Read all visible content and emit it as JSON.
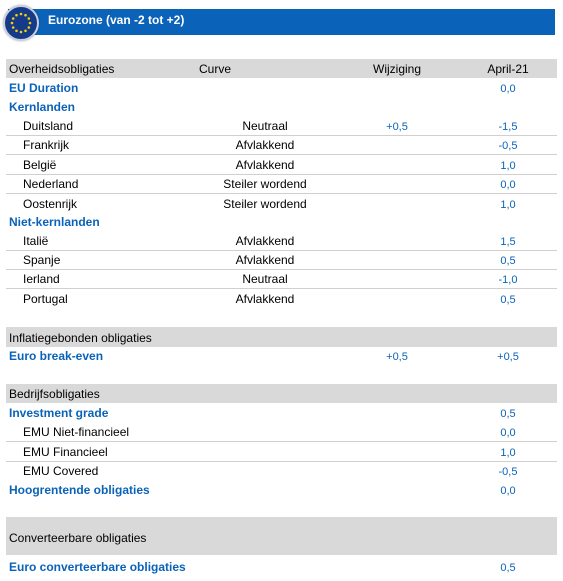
{
  "header": {
    "title": "Eurozone (van -2 tot +2)",
    "flag_icon": "eu-flag-icon"
  },
  "columns": {
    "c1": "Overheidsobligaties",
    "c2": "Curve",
    "c3": "Wijziging",
    "c4": "April-21"
  },
  "gov": {
    "eu_duration": {
      "label": "EU Duration",
      "value": "0,0"
    },
    "core_title": "Kernlanden",
    "core": [
      {
        "name": "Duitsland",
        "curve": "Neutraal",
        "change": "+0,5",
        "value": "-1,5"
      },
      {
        "name": "Frankrijk",
        "curve": "Afvlakkend",
        "change": "",
        "value": "-0,5"
      },
      {
        "name": "België",
        "curve": "Afvlakkend",
        "change": "",
        "value": "1,0"
      },
      {
        "name": "Nederland",
        "curve": "Steiler wordend",
        "change": "",
        "value": "0,0"
      },
      {
        "name": "Oostenrijk",
        "curve": "Steiler wordend",
        "change": "",
        "value": "1,0"
      }
    ],
    "noncore_title": "Niet-kernlanden",
    "noncore": [
      {
        "name": "Italië",
        "curve": "Afvlakkend",
        "change": "",
        "value": "1,5"
      },
      {
        "name": "Spanje",
        "curve": "Afvlakkend",
        "change": "",
        "value": "0,5"
      },
      {
        "name": "Ierland",
        "curve": "Neutraal",
        "change": "",
        "value": "-1,0"
      },
      {
        "name": "Portugal",
        "curve": "Afvlakkend",
        "change": "",
        "value": "0,5"
      }
    ]
  },
  "inflation": {
    "title": "Inflatiegebonden obligaties",
    "row": {
      "label": "Euro break-even",
      "change": "+0,5",
      "value": "+0,5"
    }
  },
  "corporate": {
    "title": "Bedrijfsobligaties",
    "ig": {
      "label": "Investment grade",
      "value": "0,5"
    },
    "items": [
      {
        "name": "EMU Niet-financieel",
        "value": "0,0"
      },
      {
        "name": "EMU Financieel",
        "value": "1,0"
      },
      {
        "name": "EMU Covered",
        "value": "-0,5"
      }
    ],
    "hy": {
      "label": "Hoogrentende obligaties",
      "value": "0,0"
    }
  },
  "convertible": {
    "title": "Converteerbare obligaties",
    "row": {
      "label": "Euro converteerbare obligaties",
      "value": "0,5"
    }
  }
}
